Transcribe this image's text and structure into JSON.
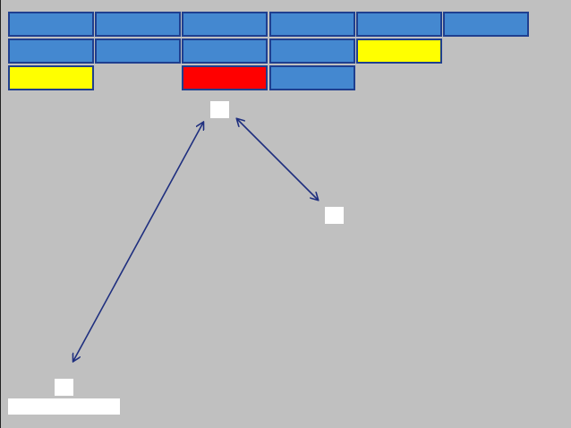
{
  "colors": {
    "background": "#c0c0c0",
    "brick_blue": "#4488d0",
    "brick_yellow": "#ffff00",
    "brick_red": "#ff0000",
    "brick_border": "#1f3f8f",
    "ball": "#ffffff",
    "paddle": "#ffffff",
    "arrow": "#1f2f7f"
  },
  "grid": {
    "rows": 3,
    "columns": 6
  },
  "bricks": [
    {
      "row": 0,
      "col": 0,
      "color": "blue"
    },
    {
      "row": 0,
      "col": 1,
      "color": "blue"
    },
    {
      "row": 0,
      "col": 2,
      "color": "blue"
    },
    {
      "row": 0,
      "col": 3,
      "color": "blue"
    },
    {
      "row": 0,
      "col": 4,
      "color": "blue"
    },
    {
      "row": 0,
      "col": 5,
      "color": "blue"
    },
    {
      "row": 1,
      "col": 0,
      "color": "blue"
    },
    {
      "row": 1,
      "col": 1,
      "color": "blue"
    },
    {
      "row": 1,
      "col": 2,
      "color": "blue"
    },
    {
      "row": 1,
      "col": 3,
      "color": "blue"
    },
    {
      "row": 1,
      "col": 4,
      "color": "yellow"
    },
    {
      "row": 2,
      "col": 0,
      "color": "yellow"
    },
    {
      "row": 2,
      "col": 2,
      "color": "red"
    },
    {
      "row": 2,
      "col": 3,
      "color": "blue"
    }
  ],
  "balls": [
    {
      "name": "ball-top"
    },
    {
      "name": "ball-right"
    },
    {
      "name": "ball-bottom"
    }
  ],
  "trajectory_arrows": [
    {
      "from": "ball-top",
      "to": "ball-bottom",
      "bidirectional": true
    },
    {
      "from": "ball-top",
      "to": "ball-right",
      "bidirectional": true
    }
  ]
}
